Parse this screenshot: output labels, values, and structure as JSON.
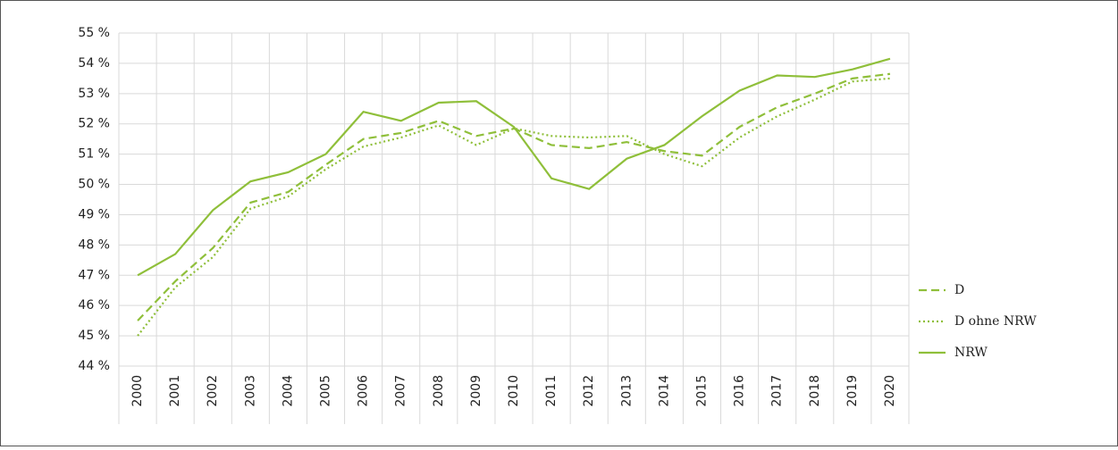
{
  "chart_data": {
    "type": "line",
    "categories": [
      "2000",
      "2001",
      "2002",
      "2003",
      "2004",
      "2005",
      "2006",
      "2007",
      "2008",
      "2009",
      "2010",
      "2011",
      "2012",
      "2013",
      "2014",
      "2015",
      "2016",
      "2017",
      "2018",
      "2019",
      "2020"
    ],
    "series": [
      {
        "name": "D",
        "color": "#8fbf3a",
        "dash": "dashed",
        "values": [
          45.5,
          46.8,
          47.9,
          49.4,
          49.75,
          50.65,
          51.5,
          51.7,
          52.1,
          51.6,
          51.85,
          51.3,
          51.2,
          51.4,
          51.1,
          50.95,
          51.9,
          52.55,
          53.0,
          53.5,
          53.65
        ]
      },
      {
        "name": "D ohne NRW",
        "color": "#8fbf3a",
        "dash": "dotted",
        "values": [
          45.0,
          46.6,
          47.6,
          49.2,
          49.6,
          50.5,
          51.25,
          51.55,
          51.95,
          51.3,
          51.85,
          51.6,
          51.55,
          51.6,
          51.0,
          50.6,
          51.55,
          52.25,
          52.8,
          53.4,
          53.5
        ]
      },
      {
        "name": "NRW",
        "color": "#8fbf3a",
        "dash": "solid",
        "values": [
          47.0,
          47.7,
          49.15,
          50.1,
          50.4,
          51.0,
          52.4,
          52.1,
          52.7,
          52.75,
          51.9,
          50.2,
          49.85,
          50.85,
          51.3,
          52.25,
          53.1,
          53.6,
          53.55,
          53.8,
          54.15
        ]
      }
    ],
    "ylim": [
      44,
      55
    ],
    "yticks": [
      {
        "value": 44,
        "label": "44 %"
      },
      {
        "value": 45,
        "label": "45 %"
      },
      {
        "value": 46,
        "label": "46 %"
      },
      {
        "value": 47,
        "label": "47 %"
      },
      {
        "value": 48,
        "label": "48 %"
      },
      {
        "value": 49,
        "label": "49 %"
      },
      {
        "value": 50,
        "label": "50 %"
      },
      {
        "value": 51,
        "label": "51 %"
      },
      {
        "value": 52,
        "label": "52 %"
      },
      {
        "value": 53,
        "label": "53 %"
      },
      {
        "value": 54,
        "label": "54 %"
      },
      {
        "value": 55,
        "label": "55 %"
      }
    ],
    "grid": true,
    "legend": "right"
  }
}
